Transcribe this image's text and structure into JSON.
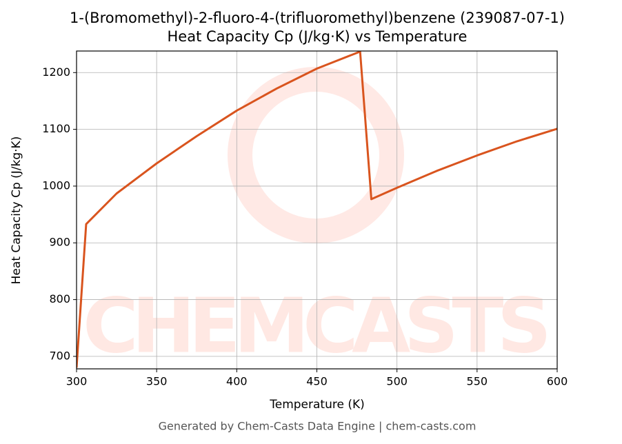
{
  "chart_data": {
    "type": "line",
    "title": "1-(Bromomethyl)-2-fluoro-4-(trifluoromethyl)benzene (239087-07-1)",
    "subtitle": "Heat Capacity Cp (J/kg·K) vs Temperature",
    "xlabel": "Temperature (K)",
    "ylabel": "Heat Capacity Cp (J/kg·K)",
    "watermark": "CHEMCASTS",
    "footer": "Generated by Chem-Casts Data Engine | chem-casts.com",
    "x": [
      300,
      306,
      325,
      350,
      375,
      400,
      425,
      450,
      477,
      484,
      500,
      525,
      550,
      575,
      600
    ],
    "series": [
      {
        "name": "Cp",
        "color": "#d9541e",
        "values": [
          680,
          933,
          987,
          1040,
          1088,
          1133,
          1172,
          1207,
          1237,
          977,
          997,
          1027,
          1054,
          1079,
          1101
        ]
      }
    ],
    "xlim": [
      300,
      600
    ],
    "xticks": [
      300,
      350,
      400,
      450,
      500,
      550,
      600
    ],
    "ylim": [
      678,
      1238
    ],
    "yticks": [
      700,
      800,
      900,
      1000,
      1100,
      1200
    ],
    "grid": true
  }
}
